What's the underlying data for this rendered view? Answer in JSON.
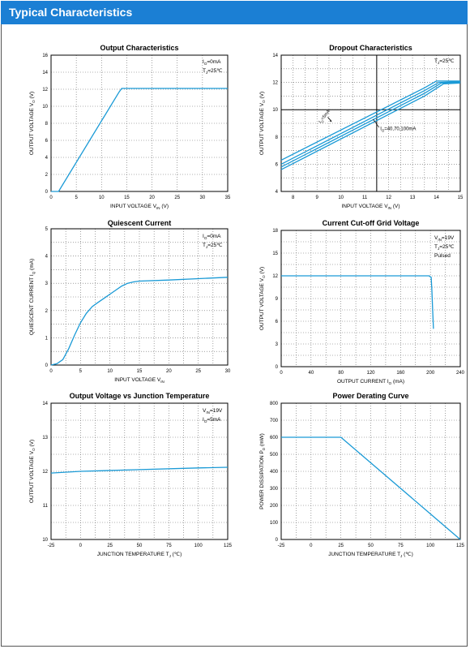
{
  "header": {
    "title": "Typical Characteristics"
  },
  "colors": {
    "header_bg": "#1b7fd4",
    "curve": "#1a9ad6",
    "grid_major": "#000000"
  },
  "chart_data": [
    {
      "id": "output",
      "type": "line",
      "title": "Output  Characteristics",
      "xlabel": {
        "main": "INPUT VOLTAGE",
        "sym": "V",
        "sub": "IN",
        "unit": "(V)"
      },
      "ylabel": {
        "main": "OUTPUT VOLTAGE",
        "sym": "V",
        "sub": "O",
        "unit": "(V)"
      },
      "xlim": [
        0,
        35
      ],
      "ylim": [
        0,
        16
      ],
      "xticks": [
        0,
        5,
        10,
        15,
        20,
        25,
        30,
        35
      ],
      "yticks": [
        0,
        2,
        4,
        6,
        8,
        10,
        12,
        14,
        16
      ],
      "xminor": 7,
      "yminor": 8,
      "grid_major_x": [],
      "grid_major_y": [],
      "annotations": [
        {
          "main": "I",
          "sub": "O",
          "rest": "=0mA"
        },
        {
          "main": "T",
          "sub": "J",
          "rest": "=25℃"
        }
      ],
      "series": [
        {
          "x": [
            0,
            1.5,
            13.5,
            14,
            35
          ],
          "y": [
            0,
            0,
            11.7,
            12.1,
            12.1
          ]
        }
      ]
    },
    {
      "id": "dropout",
      "type": "line",
      "title": "Dropout Characteristics",
      "xlabel": {
        "main": "INPUT VOLTAGE",
        "sym": "V",
        "sub": "IN",
        "unit": "(V)"
      },
      "ylabel": {
        "main": "OUTPUT VOLTAGE",
        "sym": "V",
        "sub": "O",
        "unit": "(V)"
      },
      "xlim": [
        7.5,
        15
      ],
      "ylim": [
        4,
        14
      ],
      "xticks": [
        8,
        9,
        10,
        11,
        12,
        13,
        14,
        15
      ],
      "yticks": [
        4,
        6,
        8,
        10,
        12,
        14
      ],
      "xminor": 15,
      "yminor": 10,
      "grid_major_x": [
        11.5
      ],
      "grid_major_y": [
        10
      ],
      "annotations": [
        {
          "main": "T",
          "sub": "J",
          "rest": "=25℃"
        }
      ],
      "curve_labels": [
        {
          "main": "I",
          "sub": "O",
          "rest": "=5mA"
        },
        {
          "main": "I",
          "sub": "O",
          "rest": "=40,70,100mA"
        }
      ],
      "series": [
        {
          "x": [
            7.5,
            13.5,
            14,
            15
          ],
          "y": [
            6.3,
            11.6,
            12.1,
            12.1
          ]
        },
        {
          "x": [
            7.5,
            13.5,
            14.1,
            15
          ],
          "y": [
            6.0,
            11.4,
            12.0,
            12.05
          ]
        },
        {
          "x": [
            7.5,
            13.5,
            14.2,
            15
          ],
          "y": [
            5.8,
            11.2,
            11.95,
            12.0
          ]
        },
        {
          "x": [
            7.5,
            13.5,
            14.3,
            15
          ],
          "y": [
            5.6,
            11.0,
            11.9,
            11.95
          ]
        }
      ]
    },
    {
      "id": "quiescent",
      "type": "line",
      "title": "Quiescent Current",
      "xlabel": {
        "main": "INPUT VOLTAGE",
        "sym": "V",
        "sub": "IN",
        "unit": ""
      },
      "ylabel": {
        "main": "QUIESCENT CURRENT",
        "sym": "I",
        "sub": "Q",
        "unit": "(mA)"
      },
      "xlim": [
        0,
        30
      ],
      "ylim": [
        0,
        5
      ],
      "xticks": [
        0,
        5,
        10,
        15,
        20,
        25,
        30
      ],
      "yticks": [
        0,
        1,
        2,
        3,
        4,
        5
      ],
      "xminor": 12,
      "yminor": 10,
      "grid_major_x": [],
      "grid_major_y": [],
      "annotations": [
        {
          "main": "I",
          "sub": "O",
          "rest": "=0mA"
        },
        {
          "main": "T",
          "sub": "J",
          "rest": "=25℃"
        }
      ],
      "series": [
        {
          "x": [
            0,
            1,
            2,
            3,
            4,
            5,
            6,
            7,
            8,
            9,
            10,
            11,
            12,
            13,
            14,
            15,
            20,
            25,
            30
          ],
          "y": [
            0,
            0.05,
            0.2,
            0.6,
            1.1,
            1.55,
            1.9,
            2.15,
            2.3,
            2.45,
            2.6,
            2.75,
            2.9,
            3.0,
            3.05,
            3.08,
            3.12,
            3.17,
            3.22
          ]
        }
      ]
    },
    {
      "id": "cutoff",
      "type": "line",
      "title": "Current  Cut-off Grid Voltage",
      "xlabel": {
        "main": "OUTPUT CURRENT",
        "sym": "I",
        "sub": "O",
        "unit": "(mA)"
      },
      "ylabel": {
        "main": "OUTPUT VOLTAGE",
        "sym": "V",
        "sub": "O",
        "unit": "(V)"
      },
      "xlim": [
        0,
        240
      ],
      "ylim": [
        0,
        18
      ],
      "xticks": [
        0,
        40,
        80,
        120,
        160,
        200,
        240
      ],
      "yticks": [
        0,
        3,
        6,
        9,
        12,
        15,
        18
      ],
      "xminor": 12,
      "yminor": 12,
      "grid_major_x": [],
      "grid_major_y": [],
      "annotations": [
        {
          "main": "V",
          "sub": "IN",
          "rest": "=19V"
        },
        {
          "main": "T",
          "sub": "J",
          "rest": "=25℃"
        },
        {
          "main": "Pulsed",
          "sub": "",
          "rest": ""
        }
      ],
      "series": [
        {
          "x": [
            0,
            198,
            201,
            202,
            203,
            204
          ],
          "y": [
            12,
            12,
            11.8,
            10,
            7.5,
            5.0
          ]
        }
      ]
    },
    {
      "id": "temperature",
      "type": "line",
      "title": "Output Voltage vs Junction Temperature",
      "xlabel": {
        "main": "JUNCTION TEMPERATURE",
        "sym": "T",
        "sub": "J",
        "unit": "(℃)"
      },
      "ylabel": {
        "main": "OUTPUT VOLTAGE",
        "sym": "V",
        "sub": "O",
        "unit": "(V)"
      },
      "xlim": [
        -25,
        125
      ],
      "ylim": [
        10,
        14
      ],
      "xticks": [
        -25,
        0,
        25,
        50,
        75,
        100,
        125
      ],
      "yticks": [
        10,
        11,
        12,
        13,
        14
      ],
      "xminor": 12,
      "yminor": 8,
      "grid_major_x": [],
      "grid_major_y": [],
      "annotations": [
        {
          "main": "V",
          "sub": "IN",
          "rest": "=19V"
        },
        {
          "main": "I",
          "sub": "O",
          "rest": "=5mA"
        }
      ],
      "series": [
        {
          "x": [
            -25,
            0,
            50,
            100,
            125
          ],
          "y": [
            11.95,
            12.0,
            12.05,
            12.1,
            12.12
          ]
        }
      ]
    },
    {
      "id": "derating",
      "type": "line",
      "title": "Power Derating Curve",
      "xlabel": {
        "main": "JUNCTION TEMPERATURE",
        "sym": "T",
        "sub": "J",
        "unit": "(℃)"
      },
      "ylabel": {
        "main": "POWER DISSIPATION",
        "sym": "P",
        "sub": "D",
        "unit": "(mW)"
      },
      "xlim": [
        -25,
        125
      ],
      "ylim": [
        0,
        800
      ],
      "xticks": [
        -25,
        0,
        25,
        50,
        75,
        100,
        125
      ],
      "yticks": [
        0,
        100,
        200,
        300,
        400,
        500,
        600,
        700,
        800
      ],
      "xminor": 12,
      "yminor": 8,
      "grid_major_x": [],
      "grid_major_y": [],
      "annotations": [],
      "series": [
        {
          "x": [
            -25,
            25,
            125
          ],
          "y": [
            600,
            600,
            0
          ]
        }
      ]
    }
  ]
}
